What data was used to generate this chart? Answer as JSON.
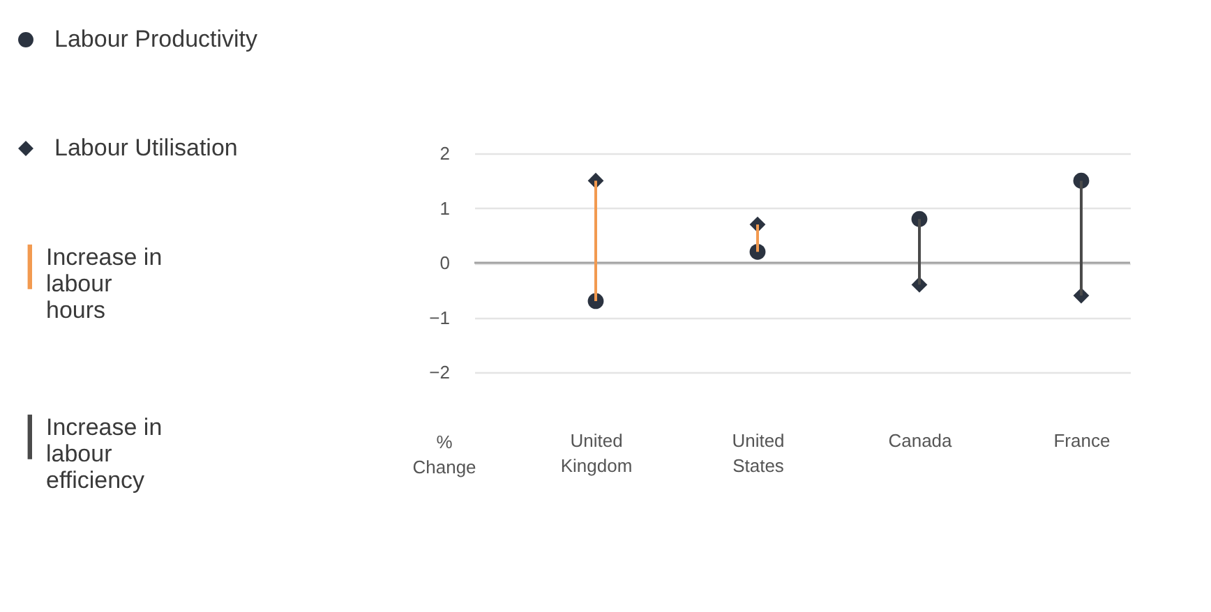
{
  "chart_data": {
    "type": "scatter",
    "ylabel": "% Change",
    "categories": [
      "United Kingdom",
      "United States",
      "Canada",
      "France"
    ],
    "series": [
      {
        "name": "Labour Productivity",
        "marker": "circle",
        "color": "#2b3340",
        "values": [
          -0.7,
          0.2,
          0.8,
          1.5
        ]
      },
      {
        "name": "Labour Utilisation",
        "marker": "diamond",
        "color": "#2b3340",
        "values": [
          1.5,
          0.7,
          -0.4,
          -0.6
        ]
      },
      {
        "name": "Increase in labour hours",
        "type": "bar",
        "color": "#f29a50",
        "base": [
          -0.7,
          0.2,
          null,
          null
        ],
        "values": [
          2.2,
          0.5,
          null,
          null
        ]
      },
      {
        "name": "Increase in labour efficiency",
        "type": "bar",
        "color": "#4a4a4a",
        "base": [
          null,
          null,
          -0.4,
          -0.6
        ],
        "values": [
          null,
          null,
          1.2,
          2.1
        ]
      }
    ],
    "ylim": [
      -2,
      2
    ],
    "yticks": [
      -2,
      -1,
      0,
      1,
      2
    ],
    "grid": "y",
    "legend": "left",
    "ref_lines": [
      {
        "axis": "y",
        "value": 0,
        "color": "#a3a3a3"
      }
    ]
  }
}
